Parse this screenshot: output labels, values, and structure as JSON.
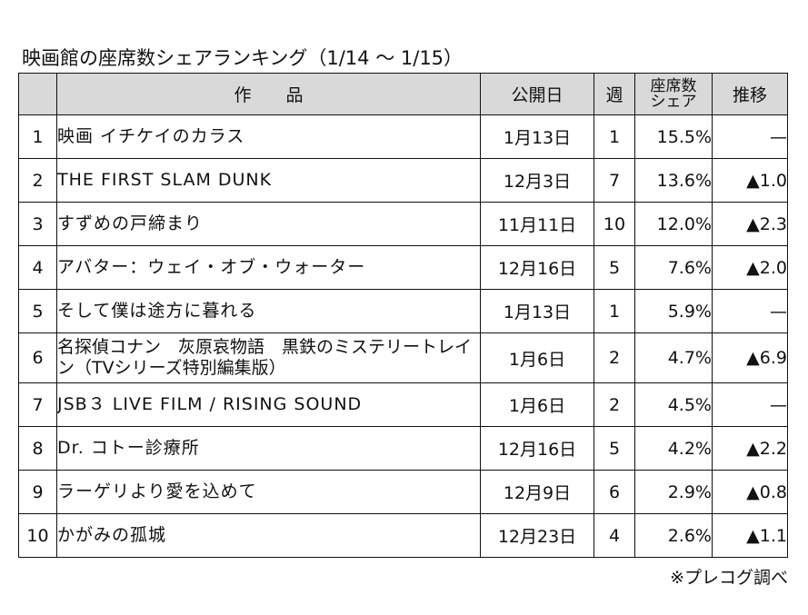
{
  "title": "映画館の座席数シェアランキング（1/14 ～ 1/15）",
  "headers": {
    "rank": "",
    "work": "作　　品",
    "release": "公開日",
    "week": "週",
    "share_line1": "座席数",
    "share_line2": "シェア",
    "trend": "推移"
  },
  "rows": [
    {
      "rank": "1",
      "title": "映画 イチケイのカラス",
      "release": "1月13日",
      "week": "1",
      "share": "15.5%",
      "trend": "—"
    },
    {
      "rank": "2",
      "title": "THE FIRST SLAM DUNK",
      "release": "12月3日",
      "week": "7",
      "share": "13.6%",
      "trend": "▲1.0"
    },
    {
      "rank": "3",
      "title": "すずめの戸締まり",
      "release": "11月11日",
      "week": "10",
      "share": "12.0%",
      "trend": "▲2.3"
    },
    {
      "rank": "4",
      "title": "アバター：ウェイ・オブ・ウォーター",
      "release": "12月16日",
      "week": "5",
      "share": "7.6%",
      "trend": "▲2.0"
    },
    {
      "rank": "5",
      "title": "そして僕は途方に暮れる",
      "release": "1月13日",
      "week": "1",
      "share": "5.9%",
      "trend": "—"
    },
    {
      "rank": "6",
      "title": "名探偵コナン　灰原哀物語　黒鉄のミステリートレイン（TVシリーズ特別編集版）",
      "release": "1月6日",
      "week": "2",
      "share": "4.7%",
      "trend": "▲6.9"
    },
    {
      "rank": "7",
      "title": "JSB３ LIVE FILM / RISING SOUND",
      "release": "1月6日",
      "week": "2",
      "share": "4.5%",
      "trend": "—"
    },
    {
      "rank": "8",
      "title": "Dr. コトー診療所",
      "release": "12月16日",
      "week": "5",
      "share": "4.2%",
      "trend": "▲2.2"
    },
    {
      "rank": "9",
      "title": "ラーゲリより愛を込めて",
      "release": "12月9日",
      "week": "6",
      "share": "2.9%",
      "trend": "▲0.8"
    },
    {
      "rank": "10",
      "title": "かがみの孤城",
      "release": "12月23日",
      "week": "4",
      "share": "2.6%",
      "trend": "▲1.1"
    }
  ],
  "source": "※プレコグ調べ"
}
